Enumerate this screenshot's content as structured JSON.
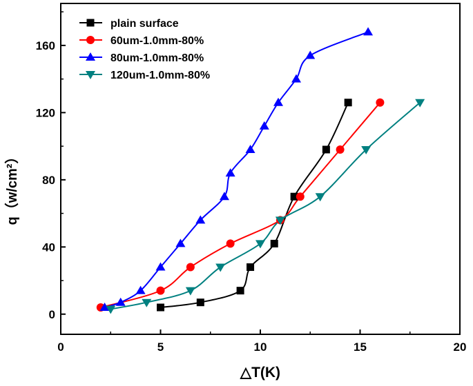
{
  "chart_data": {
    "type": "line",
    "title": "",
    "xlabel": "△T(K)",
    "ylabel": "q（w/cm²）",
    "xlim": [
      0,
      20
    ],
    "ylim": [
      -12,
      185
    ],
    "xticks": [
      0,
      5,
      10,
      15,
      20
    ],
    "yticks": [
      0,
      40,
      80,
      120,
      160
    ],
    "grid": false,
    "legend_position": "top-left",
    "series": [
      {
        "name": "plain surface",
        "color": "#000000",
        "marker": "square",
        "points": [
          [
            5.0,
            4
          ],
          [
            7.0,
            7
          ],
          [
            9.0,
            14
          ],
          [
            9.5,
            28
          ],
          [
            10.7,
            42
          ],
          [
            11.7,
            70
          ],
          [
            13.3,
            98
          ],
          [
            14.4,
            126
          ]
        ]
      },
      {
        "name": "60um-1.0mm-80%",
        "color": "#ff0000",
        "marker": "circle",
        "points": [
          [
            2.0,
            4
          ],
          [
            5.0,
            14
          ],
          [
            6.5,
            28
          ],
          [
            8.5,
            42
          ],
          [
            11.0,
            56
          ],
          [
            12.0,
            70
          ],
          [
            14.0,
            98
          ],
          [
            16.0,
            126
          ]
        ]
      },
      {
        "name": "80um-1.0mm-80%",
        "color": "#0000ff",
        "marker": "triangle-up",
        "points": [
          [
            2.2,
            4
          ],
          [
            3.0,
            7
          ],
          [
            4.0,
            14
          ],
          [
            5.0,
            28
          ],
          [
            6.0,
            42
          ],
          [
            7.0,
            56
          ],
          [
            8.2,
            70
          ],
          [
            8.5,
            84
          ],
          [
            9.5,
            98
          ],
          [
            10.2,
            112
          ],
          [
            10.9,
            126
          ],
          [
            11.8,
            140
          ],
          [
            12.5,
            154
          ],
          [
            15.4,
            168
          ]
        ]
      },
      {
        "name": "120um-1.0mm-80%",
        "color": "#008080",
        "marker": "triangle-down",
        "points": [
          [
            2.5,
            3
          ],
          [
            4.3,
            7
          ],
          [
            6.5,
            14
          ],
          [
            8.0,
            28
          ],
          [
            10.0,
            42
          ],
          [
            11.0,
            56
          ],
          [
            13.0,
            70
          ],
          [
            15.3,
            98
          ],
          [
            18.0,
            126
          ]
        ]
      }
    ]
  }
}
